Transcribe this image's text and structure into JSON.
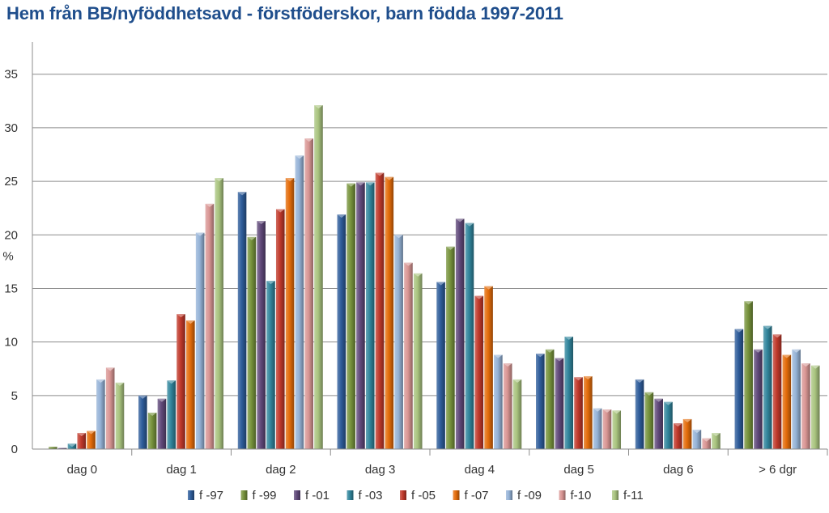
{
  "chart_data": {
    "type": "bar",
    "title": "Hem från BB/nyföddhetsavd - förstföderskor, barn födda 1997-2011",
    "ylabel": "%",
    "xlabel": "",
    "ylim": [
      0,
      38
    ],
    "yticks": [
      0,
      5,
      10,
      15,
      20,
      25,
      30,
      35
    ],
    "grid": true,
    "legend_position": "bottom",
    "categories": [
      "dag 0",
      "dag 1",
      "dag 2",
      "dag 3",
      "dag 4",
      "dag 5",
      "dag 6",
      "> 6 dgr"
    ],
    "series": [
      {
        "name": "f -97",
        "color": "#2E5C9A",
        "values": [
          0.0,
          5.0,
          24.0,
          21.9,
          15.6,
          8.9,
          6.5,
          11.2
        ]
      },
      {
        "name": "f -99",
        "color": "#77933C",
        "values": [
          0.2,
          3.4,
          19.8,
          24.8,
          18.9,
          9.3,
          5.3,
          13.8
        ]
      },
      {
        "name": "f -01",
        "color": "#60497A",
        "values": [
          0.1,
          4.7,
          21.3,
          24.9,
          21.5,
          8.5,
          4.7,
          9.3
        ]
      },
      {
        "name": "f -03",
        "color": "#31859C",
        "values": [
          0.5,
          6.4,
          15.7,
          24.9,
          21.1,
          10.5,
          4.4,
          11.5
        ]
      },
      {
        "name": "f -05",
        "color": "#C0392B",
        "values": [
          1.5,
          12.6,
          22.4,
          25.8,
          14.3,
          6.7,
          2.4,
          10.7
        ]
      },
      {
        "name": "f -07",
        "color": "#E46C0A",
        "values": [
          1.7,
          12.0,
          25.3,
          25.4,
          15.2,
          6.8,
          2.8,
          8.8
        ]
      },
      {
        "name": "f -09",
        "color": "#95B3D7",
        "values": [
          6.5,
          20.2,
          27.4,
          20.0,
          8.8,
          3.8,
          1.8,
          9.3
        ]
      },
      {
        "name": "f-10",
        "color": "#D99694",
        "values": [
          7.6,
          22.9,
          29.0,
          17.4,
          8.0,
          3.7,
          1.0,
          8.0
        ]
      },
      {
        "name": "f-11",
        "color": "#A9C47F",
        "values": [
          6.2,
          25.3,
          32.1,
          16.4,
          6.5,
          3.6,
          1.5,
          7.8
        ]
      }
    ]
  }
}
